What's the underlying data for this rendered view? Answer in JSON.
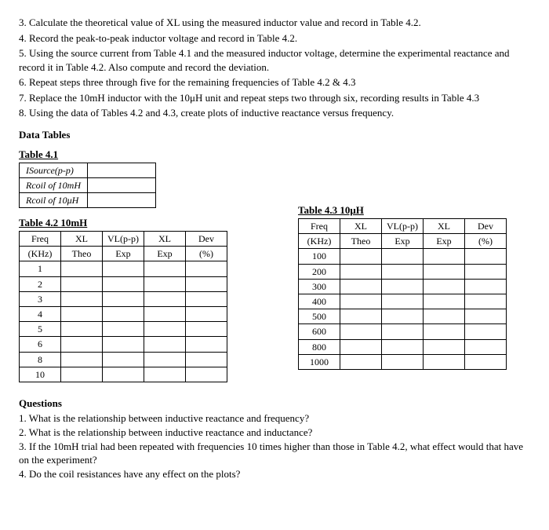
{
  "steps": [
    "3. Calculate the theoretical value of XL using the measured inductor value and record in Table 4.2.",
    "4. Record the peak-to-peak inductor voltage and record in Table 4.2.",
    "5. Using the source current from Table 4.1 and the measured inductor voltage, determine the experimental reactance and record it in Table 4.2. Also compute and record the deviation.",
    "6. Repeat steps three through five for the remaining frequencies of Table 4.2 & 4.3",
    "7. Replace the 10mH inductor with the 10μH unit and repeat steps two through six, recording results in Table 4.3",
    "8. Using the data of Tables 4.2 and 4.3, create plots of inductive reactance versus frequency."
  ],
  "data_tables_heading": "Data Tables",
  "table41": {
    "title": "Table 4.1",
    "rows": [
      "ISource(p-p)",
      "Rcoil of 10mH",
      "Rcoil of 10μH"
    ]
  },
  "table42": {
    "title": "Table 4.2 10mH",
    "headers": {
      "freq0": "Freq",
      "freq1": "(KHz)",
      "xlt0": "XL",
      "xlt1": "Theo",
      "vlpp0": "VL(p-p)",
      "vlpp1": "Exp",
      "xle0": "XL",
      "xle1": "Exp",
      "dev0": "Dev",
      "dev1": "(%)"
    },
    "freqs": [
      "1",
      "2",
      "3",
      "4",
      "5",
      "6",
      "8",
      "10"
    ]
  },
  "table43": {
    "title": "Table 4.3 10μH",
    "headers": {
      "freq0": "Freq",
      "freq1": "(KHz)",
      "xlt0": "XL",
      "xlt1": "Theo",
      "vlpp0": "VL(p-p)",
      "vlpp1": "Exp",
      "xle0": "XL",
      "xle1": "Exp",
      "dev0": "Dev",
      "dev1": "(%)"
    },
    "freqs": [
      "100",
      "200",
      "300",
      "400",
      "500",
      "600",
      "800",
      "1000"
    ]
  },
  "questions_heading": "Questions",
  "questions": [
    "1. What is the relationship between inductive reactance and frequency?",
    "2. What is the relationship between inductive reactance and inductance?",
    "3. If the 10mH trial had been repeated with frequencies 10 times higher than those in Table 4.2, what effect would that have on the experiment?",
    "4. Do the coil resistances have any effect on the plots?"
  ]
}
